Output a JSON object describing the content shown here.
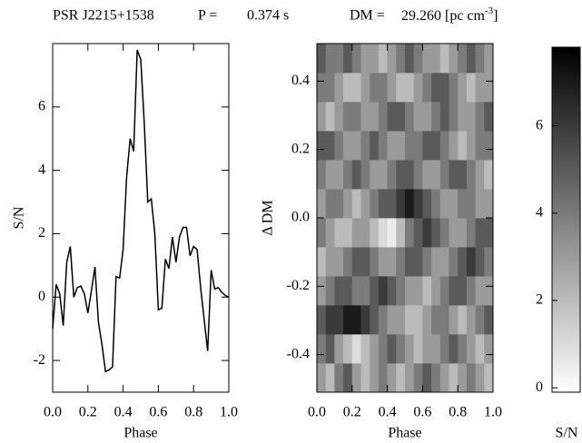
{
  "header": {
    "psr": "PSR  J2215+1538",
    "p_label": "P =",
    "p_value": "0.374 s",
    "dm_label": "DM =",
    "dm_value": "29.260 [pc cm",
    "dm_exp": "-3",
    "dm_close": "]"
  },
  "chart_data": [
    {
      "type": "line",
      "xlabel": "Phase",
      "ylabel": "S/N",
      "color": "#000000",
      "x": [
        0,
        0.02,
        0.04,
        0.06,
        0.08,
        0.1,
        0.12,
        0.14,
        0.16,
        0.18,
        0.2,
        0.22,
        0.24,
        0.26,
        0.28,
        0.3,
        0.32,
        0.34,
        0.36,
        0.38,
        0.4,
        0.42,
        0.44,
        0.46,
        0.48,
        0.5,
        0.52,
        0.54,
        0.56,
        0.58,
        0.6,
        0.62,
        0.64,
        0.66,
        0.68,
        0.7,
        0.72,
        0.74,
        0.76,
        0.78,
        0.8,
        0.82,
        0.84,
        0.86,
        0.88,
        0.9,
        0.92,
        0.94,
        0.96,
        0.98,
        1.0
      ],
      "values": [
        -1.0,
        0.4,
        0.1,
        -0.9,
        1.1,
        1.6,
        0.0,
        0.3,
        0.35,
        0.1,
        -0.5,
        0.2,
        0.95,
        -0.8,
        -1.5,
        -2.35,
        -2.3,
        -2.2,
        0.65,
        0.6,
        1.5,
        3.8,
        5.0,
        4.6,
        7.8,
        7.5,
        5.5,
        3.0,
        3.1,
        2.0,
        -0.4,
        -0.35,
        1.2,
        0.9,
        1.9,
        1.1,
        1.9,
        2.2,
        2.2,
        1.3,
        1.6,
        1.5,
        0.3,
        -0.7,
        -1.7,
        0.85,
        0.25,
        0.3,
        0.15,
        0.05,
        0.0
      ],
      "xlim": [
        0,
        1
      ],
      "xticks": [
        {
          "value": 0,
          "label": "0.0"
        },
        0.2,
        0.4,
        0.6,
        0.8,
        {
          "value": 1,
          "label": "1.0"
        }
      ],
      "ylim": [
        -3,
        8
      ],
      "yticks": [
        -2,
        0,
        2,
        4,
        6
      ]
    },
    {
      "type": "heatmap",
      "xlabel": "Phase",
      "ylabel": "Δ DM",
      "colorbar_label": "S/N",
      "colormap": [
        "#ffffff",
        "#000000"
      ],
      "xlim": [
        0,
        1
      ],
      "xticks": [
        {
          "value": 0,
          "label": "0.0"
        },
        0.2,
        0.4,
        0.6,
        0.8,
        {
          "value": 1,
          "label": "1.0"
        }
      ],
      "ylim": [
        -0.51,
        0.51
      ],
      "yticks": [
        -0.4,
        -0.2,
        {
          "value": 0,
          "label": "0.0"
        },
        0.2,
        0.4
      ],
      "zlim": [
        -0.1,
        7.8
      ],
      "zticks": [
        0,
        2,
        4,
        6
      ],
      "z": [
        [
          3,
          2,
          4,
          5,
          3,
          2,
          3,
          4,
          3,
          2,
          3,
          4,
          5,
          4,
          3,
          2,
          3,
          4,
          3,
          2
        ],
        [
          4,
          5,
          3,
          2,
          1,
          2,
          3,
          4,
          5,
          4,
          3,
          2,
          3,
          3,
          4,
          5,
          4,
          3,
          2,
          3
        ],
        [
          5,
          6,
          6,
          7,
          7,
          6,
          5,
          4,
          3,
          3,
          2,
          2,
          3,
          4,
          4,
          3,
          2,
          3,
          4,
          5
        ],
        [
          3,
          4,
          5,
          5,
          4,
          4,
          5,
          6,
          5,
          4,
          3,
          3,
          2,
          3,
          4,
          5,
          5,
          4,
          3,
          3
        ],
        [
          2,
          3,
          3,
          4,
          5,
          5,
          4,
          3,
          3,
          4,
          5,
          5,
          4,
          3,
          3,
          4,
          5,
          6,
          5,
          4
        ],
        [
          4,
          3,
          2,
          2,
          3,
          3,
          2,
          1,
          0.5,
          2,
          4,
          5,
          6,
          5,
          4,
          3,
          3,
          4,
          5,
          5
        ],
        [
          3,
          4,
          4,
          3,
          2,
          3,
          4,
          5,
          5,
          6,
          7,
          6,
          5,
          4,
          3,
          3,
          4,
          4,
          3,
          3
        ],
        [
          4,
          3,
          3,
          4,
          5,
          4,
          3,
          3,
          4,
          5,
          5,
          4,
          3,
          3,
          4,
          5,
          5,
          4,
          3,
          2
        ],
        [
          5,
          5,
          4,
          3,
          3,
          4,
          5,
          4,
          3,
          3,
          4,
          4,
          5,
          5,
          4,
          3,
          2,
          3,
          4,
          4
        ],
        [
          3,
          2,
          3,
          4,
          4,
          3,
          3,
          4,
          5,
          5,
          4,
          3,
          3,
          4,
          5,
          4,
          3,
          3,
          4,
          5
        ],
        [
          4,
          4,
          3,
          2,
          2,
          3,
          4,
          4,
          3,
          2,
          2,
          3,
          4,
          5,
          5,
          4,
          3,
          2,
          3,
          3
        ],
        [
          5,
          4,
          4,
          5,
          4,
          3,
          3,
          2,
          3,
          4,
          5,
          4,
          3,
          3,
          2,
          3,
          4,
          5,
          4,
          3
        ]
      ]
    }
  ]
}
